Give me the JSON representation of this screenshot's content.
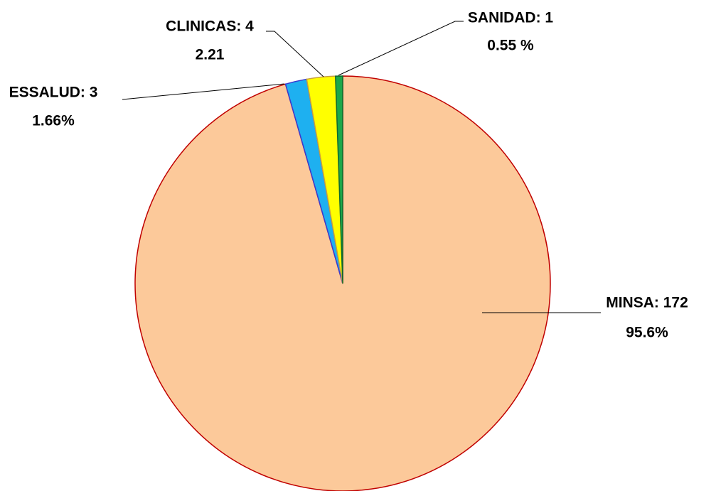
{
  "chart_data": {
    "type": "pie",
    "labels": [
      "MINSA: 172",
      "ESSALUD: 3",
      "CLINICAS: 4",
      "SANIDAD: 1"
    ],
    "values": [
      172,
      3,
      4,
      1
    ],
    "percent_labels": [
      "95.6%",
      "1.66%",
      "2.21",
      "0.55 %"
    ],
    "colors": [
      "#fcc99a",
      "#1eb0f0",
      "#ffff00",
      "#1ba84a"
    ],
    "edge_colors": [
      "#c00000",
      "#3a3ad0",
      "#c8a040",
      "#0e6b2e"
    ]
  }
}
